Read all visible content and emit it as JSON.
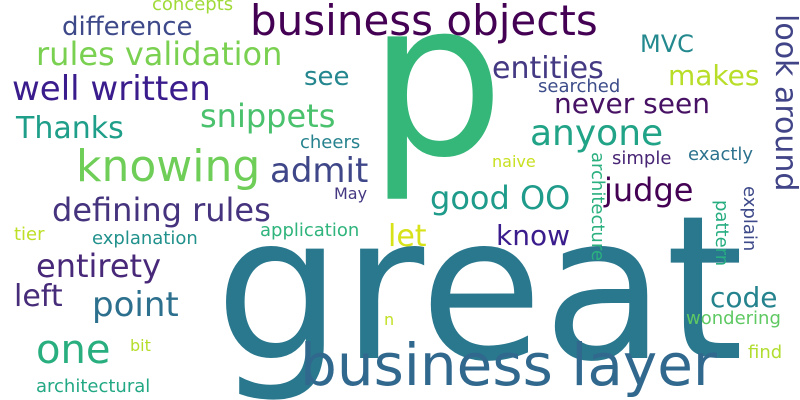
{
  "word_cloud": {
    "background": "#ffffff",
    "words": {
      "p": "p",
      "great": "great",
      "business_objects": "business objects",
      "business_layer": "business layer",
      "knowing": "knowing",
      "rules_validation": "rules validation",
      "well_written": "well written",
      "difference": "difference",
      "concepts": "concepts",
      "thanks": "Thanks",
      "snippets": "snippets",
      "defining_rules": "defining rules",
      "entirety": "entirety",
      "left": "left",
      "point": "point",
      "one": "one",
      "bit": "bit",
      "architectural": "architectural",
      "explanation": "explanation",
      "tier": "tier",
      "see": "see",
      "admit": "admit",
      "may": "May",
      "cheers": "cheers",
      "let": "let",
      "application": "application",
      "n": "n",
      "good_oo": "good OO",
      "know": "know",
      "anyone": "anyone",
      "entities": "entities",
      "searched": "searched",
      "mvc": "MVC",
      "makes": "makes",
      "never_seen": "never seen",
      "judge": "judge",
      "naive": "naive",
      "simple": "simple",
      "exactly": "exactly",
      "code": "code",
      "wondering": "wondering",
      "find": "find",
      "look_around": "look around",
      "explain": "explain",
      "pattern": "pattern",
      "architecture": "architecture"
    }
  }
}
